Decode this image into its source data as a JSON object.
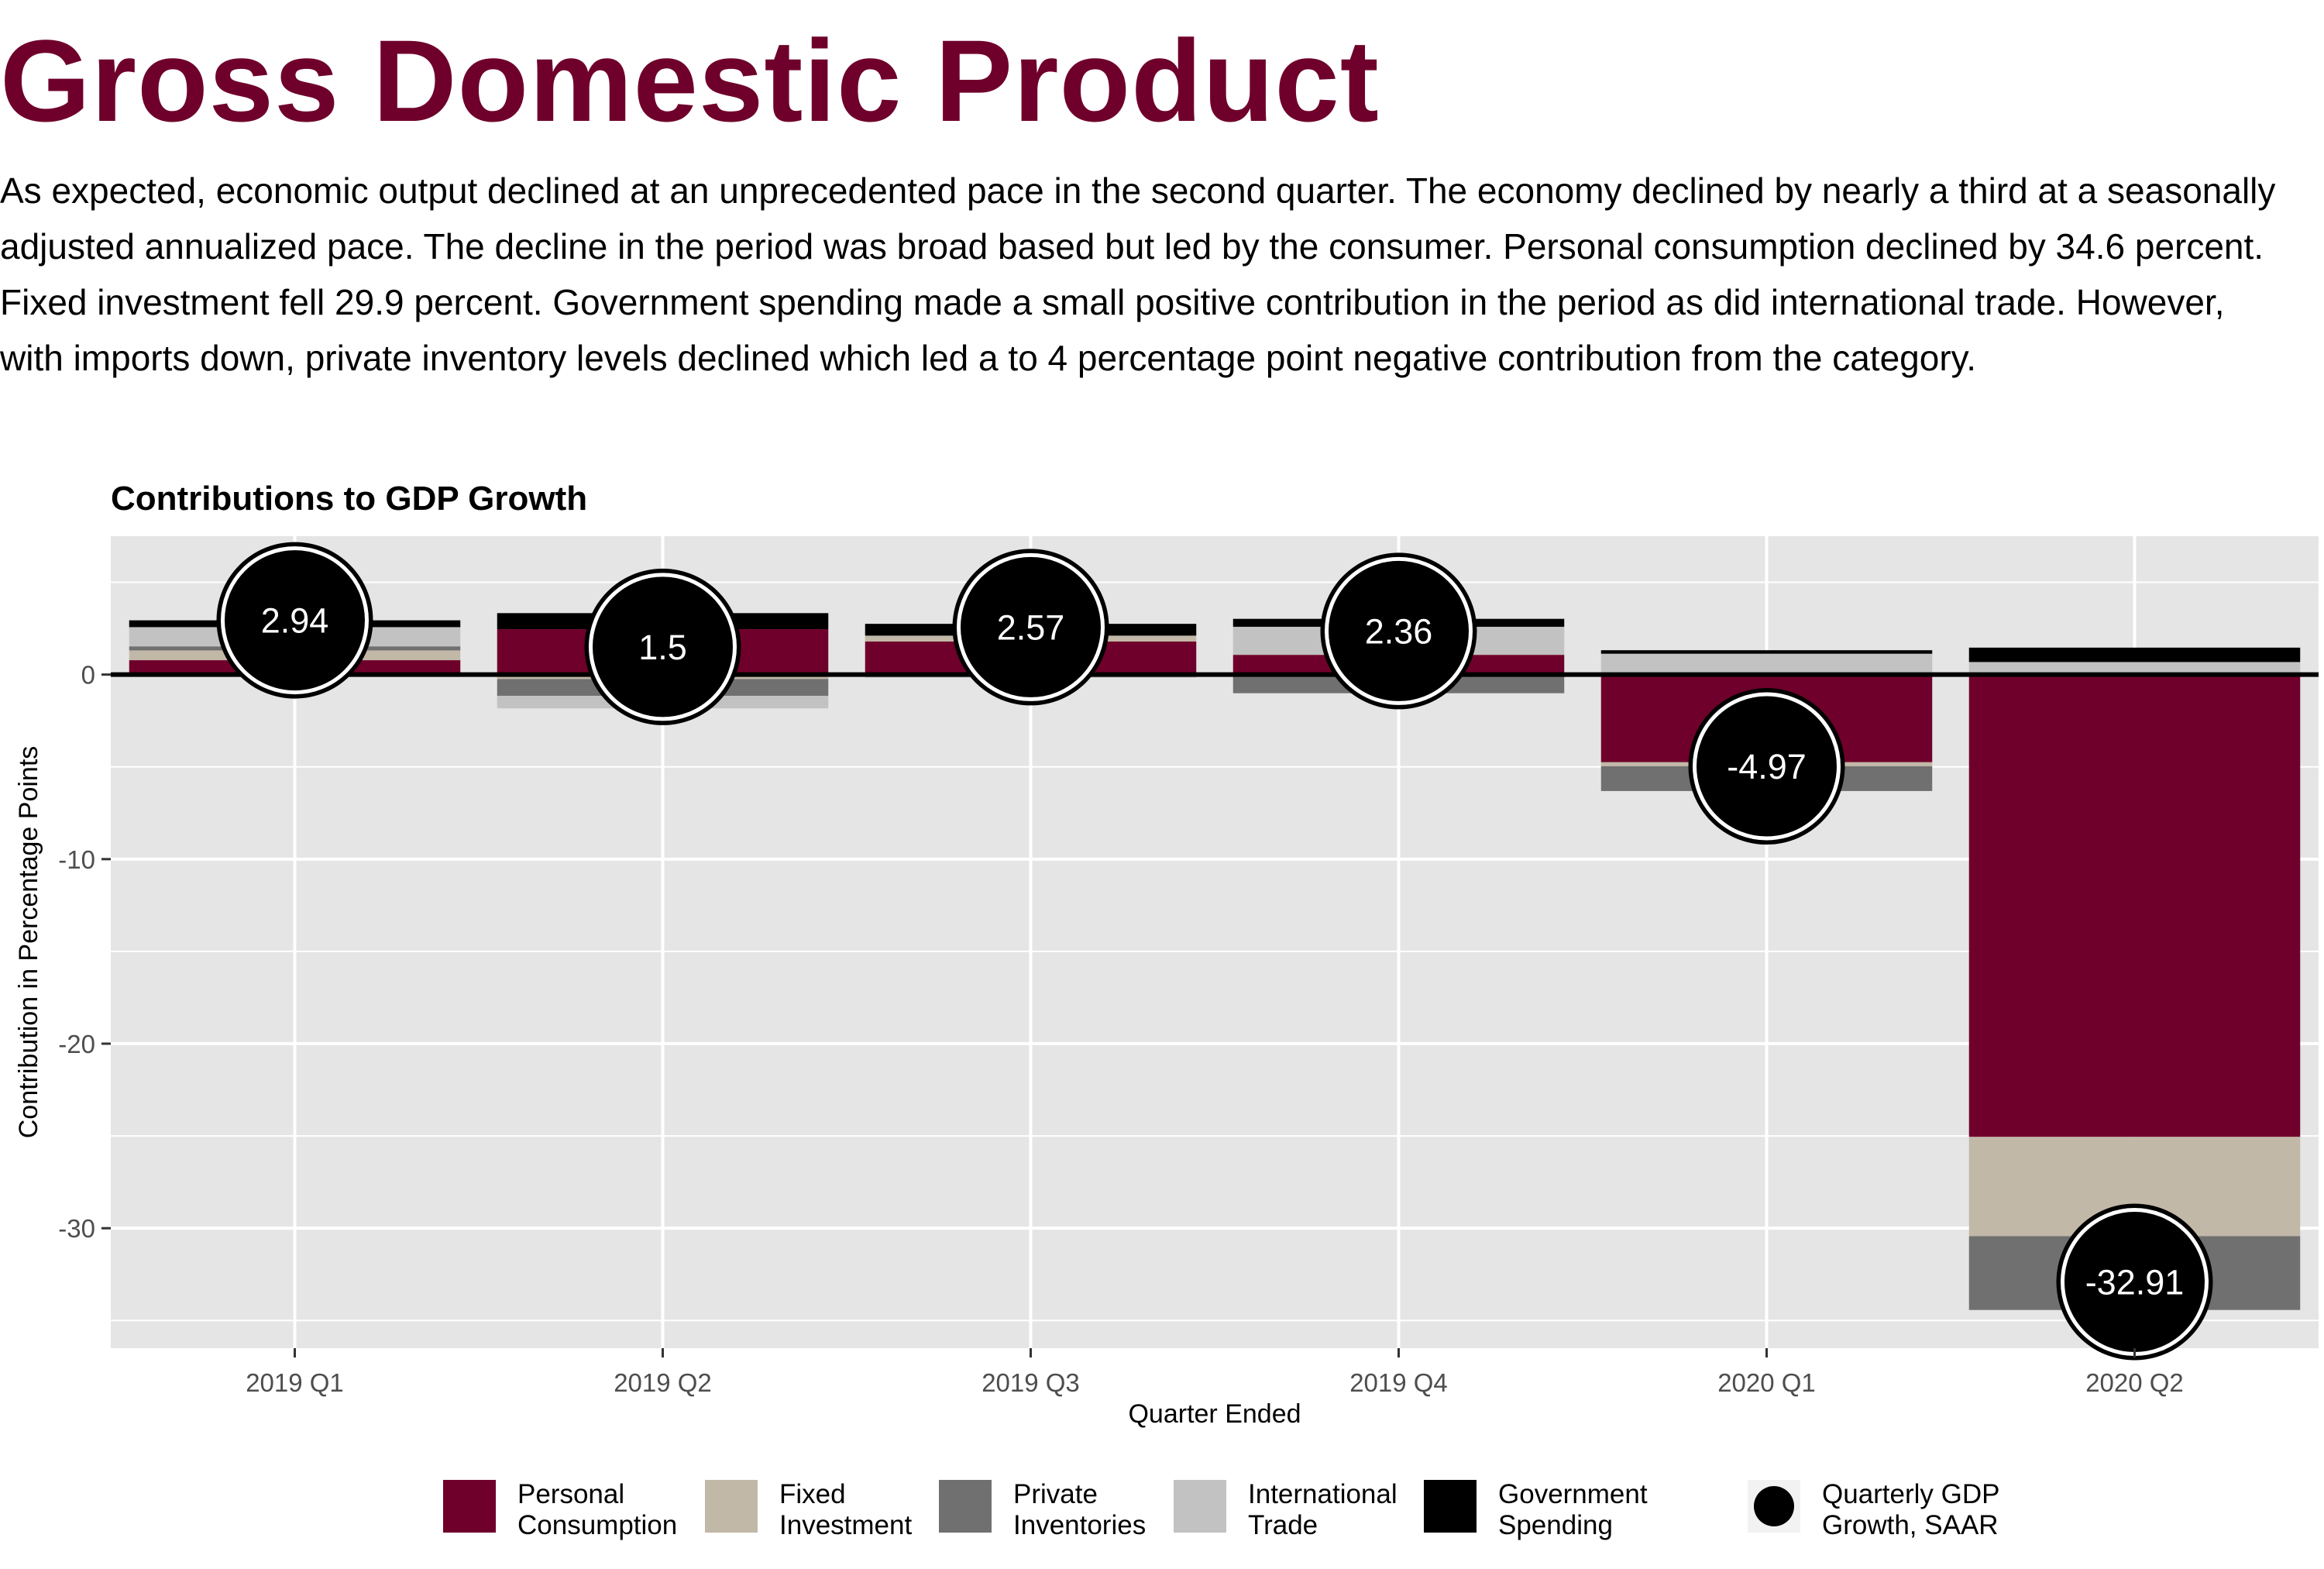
{
  "title": "Gross Domestic Product",
  "intro": "As expected, economic output declined at an unprecedented pace in the second quarter. The economy declined by nearly a third at a seasonally adjusted annualized pace. The decline in the period was broad based but led by the consumer. Personal consumption declined by 34.6 percent. Fixed investment fell 29.9 percent. Government spending made a small positive contribution in the period as did international trade. However, with imports down, private inventory levels declined which led a to 4 percentage point negative contribution from the category.",
  "chart_data": {
    "type": "bar",
    "stacked": true,
    "title": "Contributions to GDP Growth",
    "xlabel": "Quarter Ended",
    "ylabel": "Contribution in Percentage Points",
    "ylim": [
      -36.5,
      7.5
    ],
    "yticks": [
      0,
      -10,
      -20,
      -30
    ],
    "grid": true,
    "legend_position": "bottom",
    "zero_line": true,
    "categories": [
      "2019 Q1",
      "2019 Q2",
      "2019 Q3",
      "2019 Q4",
      "2020 Q1",
      "2020 Q2"
    ],
    "series": [
      {
        "name": "Personal\nConsumption",
        "color": "#6f002b",
        "values": [
          0.78,
          2.46,
          1.79,
          1.07,
          -4.75,
          -25.05
        ]
      },
      {
        "name": "Fixed\nInvestment",
        "color": "#c2b8a8",
        "values": [
          0.53,
          -0.24,
          0.32,
          -0.03,
          -0.22,
          -5.38
        ]
      },
      {
        "name": "Private\nInventories",
        "color": "#707070",
        "values": [
          0.22,
          -0.91,
          -0.03,
          -0.98,
          -1.34,
          -4.0
        ]
      },
      {
        "name": "International\nTrade",
        "color": "#c2c2c2",
        "values": [
          1.04,
          -0.68,
          -0.14,
          1.52,
          1.13,
          0.68
        ]
      },
      {
        "name": "Government\nSpending",
        "color": "#000000",
        "values": [
          0.37,
          0.87,
          0.64,
          0.43,
          0.19,
          0.78
        ]
      }
    ],
    "gdp": {
      "name": "Quarterly GDP\nGrowth, SAAR",
      "values": [
        2.94,
        1.5,
        2.57,
        2.36,
        -4.97,
        -32.91
      ],
      "labels": [
        "2.94",
        "1.5",
        "2.57",
        "2.36",
        "-4.97",
        "-32.91"
      ]
    },
    "colors": {
      "panel": "#e5e5e5",
      "grid": "#ffffff",
      "title_accent": "#6f002b"
    }
  }
}
